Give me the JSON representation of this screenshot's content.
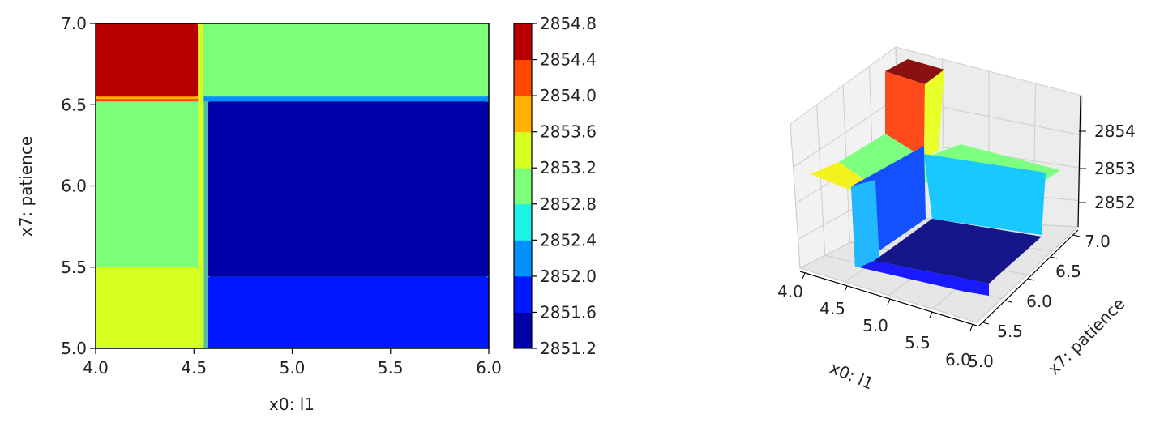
{
  "chart_data": [
    {
      "type": "contour",
      "title": "",
      "xlabel": "x0: l1",
      "ylabel": "x7: patience",
      "xlim": [
        4.0,
        6.0
      ],
      "ylim": [
        5.0,
        7.0
      ],
      "xticks": [
        "4.0",
        "4.5",
        "5.0",
        "5.5",
        "6.0"
      ],
      "yticks": [
        "5.0",
        "5.5",
        "6.0",
        "6.5",
        "7.0"
      ],
      "regions": [
        {
          "x": [
            4.0,
            4.52
          ],
          "y": [
            6.55,
            7.0
          ],
          "level": 2854.6
        },
        {
          "x": [
            4.55,
            6.0
          ],
          "y": [
            6.55,
            7.0
          ],
          "level": 2853.0
        },
        {
          "x": [
            4.0,
            4.52
          ],
          "y": [
            5.5,
            6.52
          ],
          "level": 2853.0
        },
        {
          "x": [
            4.57,
            6.0
          ],
          "y": [
            5.44,
            6.52
          ],
          "level": 2851.4
        },
        {
          "x": [
            4.0,
            4.52
          ],
          "y": [
            5.0,
            5.5
          ],
          "level": 2853.4
        },
        {
          "x": [
            4.57,
            6.0
          ],
          "y": [
            5.0,
            5.44
          ],
          "level": 2851.8
        }
      ],
      "colorbar": {
        "levels": [
          2851.2,
          2851.6,
          2852.0,
          2852.4,
          2852.8,
          2853.2,
          2853.6,
          2854.0,
          2854.4,
          2854.8
        ],
        "tick_labels": [
          "2851.2",
          "2851.6",
          "2852.0",
          "2852.4",
          "2852.8",
          "2853.2",
          "2853.6",
          "2854.0",
          "2854.4",
          "2854.8"
        ],
        "colors": [
          "#0000a8",
          "#0018ff",
          "#0090ff",
          "#1cf2e6",
          "#7cff7a",
          "#d6ff22",
          "#ffb300",
          "#ff4800",
          "#b80000"
        ]
      }
    },
    {
      "type": "surface3d",
      "xlabel": "x0: l1",
      "ylabel": "x7: patience",
      "zlabel": "",
      "xticks": [
        "4.0",
        "4.5",
        "5.0",
        "5.5",
        "6.0"
      ],
      "yticks": [
        "5.0",
        "5.5",
        "6.0",
        "6.5",
        "7.0"
      ],
      "zticks": [
        "2852",
        "2853",
        "2854"
      ]
    }
  ]
}
